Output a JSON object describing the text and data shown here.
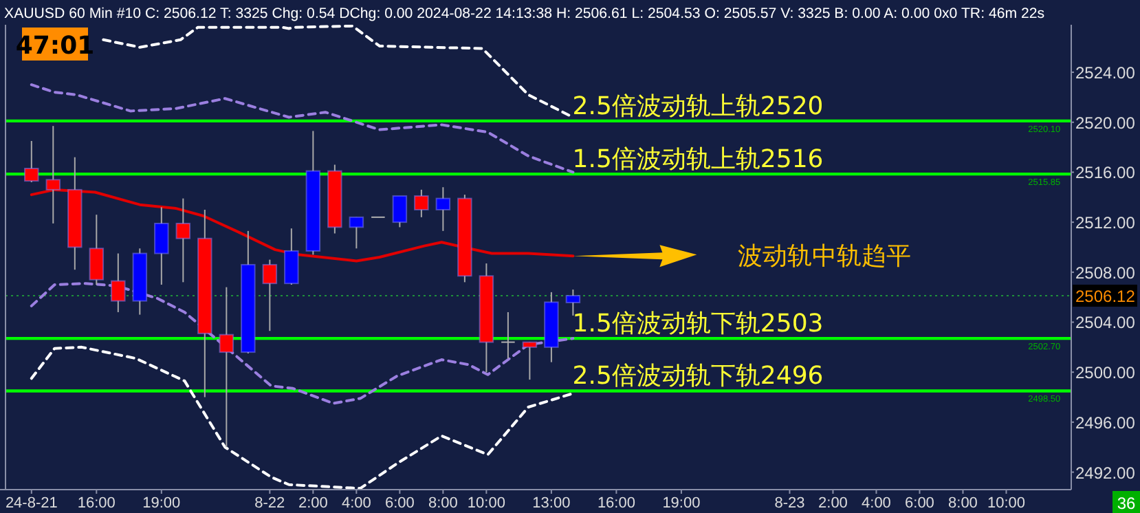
{
  "chart_data": {
    "type": "candlestick",
    "title": "XAUUSD  60 Min   #10 C: 2506.12 T: 3325 Chg: 0.54 DChg: 0.00 2024-08-22 14:13:38 H: 2506.61 L: 2504.53 O: 2505.57 V: 3325 B: 0.00 A: 0.00 0x0 TR: 46m 22s",
    "x": [
      "2024-08-21T13:00",
      "2024-08-21T14:00",
      "2024-08-21T15:00",
      "2024-08-21T16:00",
      "2024-08-21T17:00",
      "2024-08-21T18:00",
      "2024-08-21T19:00",
      "2024-08-21T20:00",
      "2024-08-21T21:00",
      "2024-08-21T22:00",
      "2024-08-21T23:00",
      "2024-08-22T00:00",
      "2024-08-22T01:00",
      "2024-08-22T02:00",
      "2024-08-22T03:00",
      "2024-08-22T04:00",
      "2024-08-22T05:00",
      "2024-08-22T06:00",
      "2024-08-22T07:00",
      "2024-08-22T08:00",
      "2024-08-22T09:00",
      "2024-08-22T10:00",
      "2024-08-22T11:00",
      "2024-08-22T12:00",
      "2024-08-22T13:00",
      "2024-08-22T14:00"
    ],
    "ohlc": [
      [
        2516.3,
        2518.5,
        2515.2,
        2515.3
      ],
      [
        2515.4,
        2519.7,
        2511.9,
        2514.6
      ],
      [
        2514.6,
        2517.2,
        2508.2,
        2510.0
      ],
      [
        2509.9,
        2512.6,
        2507.0,
        2507.4
      ],
      [
        2507.3,
        2509.5,
        2504.8,
        2505.7
      ],
      [
        2505.7,
        2509.9,
        2504.6,
        2509.5
      ],
      [
        2509.5,
        2513.2,
        2507.0,
        2511.9
      ],
      [
        2511.9,
        2513.9,
        2507.2,
        2510.7
      ],
      [
        2510.7,
        2513.0,
        2498.0,
        2503.1
      ],
      [
        2503.0,
        2506.8,
        2494.0,
        2501.6
      ],
      [
        2501.6,
        2511.3,
        2501.5,
        2508.6
      ],
      [
        2508.6,
        2509.0,
        2503.3,
        2507.1
      ],
      [
        2507.1,
        2511.5,
        2507.0,
        2509.7
      ],
      [
        2509.7,
        2519.3,
        2509.4,
        2516.1
      ],
      [
        2516.1,
        2516.6,
        2511.1,
        2511.6
      ],
      [
        2511.6,
        2512.4,
        2509.9,
        2512.4
      ],
      [
        2512.4,
        2512.4,
        2512.4,
        2512.4
      ],
      [
        2512.0,
        2514.1,
        2511.6,
        2514.1
      ],
      [
        2514.1,
        2514.6,
        2512.4,
        2513.0
      ],
      [
        2513.0,
        2514.8,
        2511.3,
        2513.9
      ],
      [
        2513.9,
        2514.2,
        2507.2,
        2507.7
      ],
      [
        2507.7,
        2508.7,
        2500.0,
        2502.4
      ],
      [
        2502.4,
        2504.8,
        2501.1,
        2502.4
      ],
      [
        2502.4,
        2502.4,
        2499.4,
        2502.0
      ],
      [
        2502.0,
        2506.4,
        2500.8,
        2505.6
      ],
      [
        2505.57,
        2506.61,
        2504.53,
        2506.12
      ]
    ],
    "colors": [
      "#ff0000",
      "#ff0000",
      "#ff0000",
      "#ff0000",
      "#ff0000",
      "#0000ff",
      "#0000ff",
      "#ff0000",
      "#ff0000",
      "#ff0000",
      "#0000ff",
      "#ff0000",
      "#0000ff",
      "#0000ff",
      "#ff0000",
      "#0000ff",
      "#b0b0b0",
      "#0000ff",
      "#ff0000",
      "#0000ff",
      "#ff0000",
      "#ff0000",
      "#b0b0b0",
      "#ff0000",
      "#0000ff",
      "#0000ff"
    ],
    "series": [
      {
        "type": "line",
        "color": "#e00000",
        "line_style": "solid",
        "x": [
          "2024-08-21T13:00",
          "2024-08-21T14:04",
          "2024-08-21T15:56",
          "2024-08-21T18:00",
          "2024-08-21T19:41",
          "2024-08-21T20:56",
          "2024-08-21T22:34",
          "2024-08-22T00:15",
          "2024-08-22T01:19",
          "2024-08-22T04:00",
          "2024-08-22T05:04",
          "2024-08-22T07:08",
          "2024-08-22T07:56",
          "2024-08-22T09:11",
          "2024-08-22T10:15",
          "2024-08-22T11:56",
          "2024-08-22T14:00"
        ],
        "values": [
          2514.2,
          2514.6,
          2514.4,
          2513.4,
          2513.1,
          2512.5,
          2511.2,
          2509.8,
          2509.4,
          2508.9,
          2509.2,
          2510.1,
          2510.4,
          2509.9,
          2509.5,
          2509.5,
          2509.3
        ]
      },
      {
        "type": "line",
        "color": "#9b7fe0",
        "line_style": "dashed",
        "x": [
          "2024-08-21T13:00",
          "2024-08-21T14:04",
          "2024-08-21T15:04",
          "2024-08-21T17:34",
          "2024-08-21T19:41",
          "2024-08-21T21:56",
          "2024-08-22T00:53",
          "2024-08-22T02:34",
          "2024-08-22T05:04",
          "2024-08-22T07:56",
          "2024-08-22T10:04",
          "2024-08-22T11:56",
          "2024-08-22T14:00"
        ],
        "values": [
          2523.0,
          2522.4,
          2522.2,
          2520.9,
          2521.1,
          2521.9,
          2520.4,
          2520.8,
          2519.4,
          2519.8,
          2519.2,
          2517.3,
          2516.0
        ]
      },
      {
        "type": "line",
        "color": "#9b7fe0",
        "line_style": "dashed",
        "x": [
          "2024-08-21T13:00",
          "2024-08-21T14:04",
          "2024-08-21T15:30",
          "2024-08-21T16:56",
          "2024-08-21T18:49",
          "2024-08-21T20:04",
          "2024-08-21T21:34",
          "2024-08-22T00:04",
          "2024-08-22T01:04",
          "2024-08-22T02:56",
          "2024-08-22T04:11",
          "2024-08-22T05:53",
          "2024-08-22T07:56",
          "2024-08-22T09:11",
          "2024-08-22T10:04",
          "2024-08-22T11:56",
          "2024-08-22T14:00"
        ],
        "values": [
          2505.3,
          2507.0,
          2507.1,
          2506.9,
          2505.9,
          2504.8,
          2502.6,
          2498.9,
          2498.7,
          2497.5,
          2497.9,
          2499.7,
          2501.0,
          2500.6,
          2499.8,
          2502.2,
          2502.7
        ]
      },
      {
        "type": "line",
        "color": "#ffffff",
        "line_style": "dashed",
        "x": [
          "2024-08-21T16:19",
          "2024-08-21T18:00",
          "2024-08-21T19:53",
          "2024-08-21T20:41",
          "2024-08-22T00:34",
          "2024-08-22T00:53",
          "2024-08-22T01:11",
          "2024-08-22T03:49",
          "2024-08-22T05:04",
          "2024-08-22T09:49",
          "2024-08-22T11:56",
          "2024-08-22T14:00"
        ],
        "values": [
          2526.6,
          2526.0,
          2526.6,
          2527.6,
          2527.6,
          2527.5,
          2527.6,
          2527.7,
          2526.1,
          2525.9,
          2522.2,
          2520.4
        ]
      },
      {
        "type": "line",
        "color": "#ffffff",
        "line_style": "dashed",
        "x": [
          "2024-08-21T13:00",
          "2024-08-21T14:04",
          "2024-08-21T15:19",
          "2024-08-21T17:49",
          "2024-08-21T20:04",
          "2024-08-21T21:56",
          "2024-08-22T00:04",
          "2024-08-22T00:53",
          "2024-08-22T04:11",
          "2024-08-22T05:53",
          "2024-08-22T07:56",
          "2024-08-22T10:04",
          "2024-08-22T11:56",
          "2024-08-22T14:00"
        ],
        "values": [
          2499.5,
          2501.9,
          2502.0,
          2501.1,
          2499.3,
          2494.0,
          2491.6,
          2491.0,
          2490.7,
          2492.7,
          2494.9,
          2493.4,
          2497.2,
          2498.3
        ]
      }
    ],
    "xlim": [
      "2024-08-21T11:48",
      "2024-08-23T13:00"
    ],
    "xticks": [
      {
        "value": "2024-08-21T13:00",
        "label": "24-8-21"
      },
      {
        "value": "2024-08-21T16:00",
        "label": "16:00"
      },
      {
        "value": "2024-08-21T19:00",
        "label": "19:00"
      },
      {
        "value": "2024-08-22T00:00",
        "label": "8-22"
      },
      {
        "value": "2024-08-22T02:00",
        "label": "2:00"
      },
      {
        "value": "2024-08-22T04:00",
        "label": "4:00"
      },
      {
        "value": "2024-08-22T06:00",
        "label": "6:00"
      },
      {
        "value": "2024-08-22T08:00",
        "label": "8:00"
      },
      {
        "value": "2024-08-22T10:00",
        "label": "10:00"
      },
      {
        "value": "2024-08-22T13:00",
        "label": "13:00"
      },
      {
        "value": "2024-08-22T16:00",
        "label": "16:00"
      },
      {
        "value": "2024-08-22T19:00",
        "label": "19:00"
      },
      {
        "value": "2024-08-23T00:00",
        "label": "8-23"
      },
      {
        "value": "2024-08-23T02:00",
        "label": "2:00"
      },
      {
        "value": "2024-08-23T04:00",
        "label": "4:00"
      },
      {
        "value": "2024-08-23T06:00",
        "label": "6:00"
      },
      {
        "value": "2024-08-23T08:00",
        "label": "8:00"
      },
      {
        "value": "2024-08-23T10:00",
        "label": "10:00"
      }
    ],
    "ylim": [
      2490.6,
      2527.8
    ],
    "yticks": [
      {
        "value": 2492,
        "label": "2492.00"
      },
      {
        "value": 2496,
        "label": "2496.00"
      },
      {
        "value": 2500,
        "label": "2500.00"
      },
      {
        "value": 2504,
        "label": "2504.00"
      },
      {
        "value": 2508,
        "label": "2508.00"
      },
      {
        "value": 2512,
        "label": "2512.00"
      },
      {
        "value": 2516,
        "label": "2516.00"
      },
      {
        "value": 2520,
        "label": "2520.00"
      },
      {
        "value": 2524,
        "label": "2524.00"
      }
    ],
    "ref_lines": [
      {
        "axis": "y",
        "value": 2520.1,
        "label": "2.5倍波动轨上轨2520",
        "color": "#00ff00",
        "line_style": "solid"
      },
      {
        "axis": "y",
        "value": 2515.85,
        "label": "1.5倍波动轨上轨2516",
        "color": "#00ff00",
        "line_style": "solid"
      },
      {
        "axis": "y",
        "value": 2502.7,
        "label": "1.5倍波动轨下轨2503",
        "color": "#00ff00",
        "line_style": "solid"
      },
      {
        "axis": "y",
        "value": 2498.5,
        "label": "2.5倍波动轨下轨2496",
        "color": "#00ff00",
        "line_style": "solid"
      },
      {
        "axis": "y",
        "value": 2506.12,
        "label": "2506.12",
        "color": "#1f8f3a",
        "line_style": "dotted"
      }
    ],
    "annotations": [
      "47:01",
      "波动轨中轨趋平",
      "36",
      {
        "text": "2520.10",
        "x": "2024-08-23T12:30",
        "y": 2520.1
      },
      {
        "text": "2515.85",
        "x": "2024-08-23T12:30",
        "y": 2515.85
      },
      {
        "text": "2502.70",
        "x": "2024-08-23T12:30",
        "y": 2502.7
      },
      {
        "text": "2498.50",
        "x": "2024-08-23T12:30",
        "y": 2498.5
      }
    ]
  }
}
